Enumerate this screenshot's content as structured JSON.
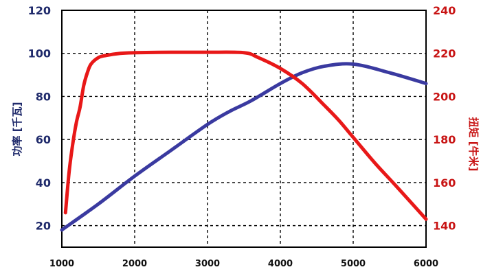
{
  "chart_data": {
    "type": "line",
    "title": "",
    "xlabel": "",
    "xlim": [
      1000,
      6000
    ],
    "x_ticks": [
      1000,
      2000,
      3000,
      4000,
      5000,
      6000
    ],
    "ylabel_left": "功率 [千瓦]",
    "ylim_left": [
      10,
      120
    ],
    "y_ticks_left": [
      20,
      40,
      60,
      80,
      100,
      120
    ],
    "ylabel_right": "扭矩 [牛米]",
    "ylim_right": [
      130,
      240
    ],
    "y_ticks_right": [
      140,
      160,
      180,
      200,
      220,
      240
    ],
    "grid": true,
    "series": [
      {
        "axis": "left",
        "color": "#3a3aa0",
        "points": [
          [
            1000,
            18
          ],
          [
            1500,
            30
          ],
          [
            2000,
            43
          ],
          [
            2500,
            55
          ],
          [
            3000,
            67
          ],
          [
            3300,
            73
          ],
          [
            3600,
            78
          ],
          [
            4000,
            86
          ],
          [
            4300,
            91
          ],
          [
            4600,
            94
          ],
          [
            5000,
            95
          ],
          [
            5500,
            91
          ],
          [
            6000,
            86
          ]
        ]
      },
      {
        "axis": "right",
        "color": "#e81818",
        "points": [
          [
            1050,
            146
          ],
          [
            1100,
            165
          ],
          [
            1150,
            178
          ],
          [
            1200,
            188
          ],
          [
            1250,
            195
          ],
          [
            1300,
            205
          ],
          [
            1350,
            211
          ],
          [
            1400,
            215
          ],
          [
            1500,
            218
          ],
          [
            1600,
            219
          ],
          [
            1800,
            220
          ],
          [
            2000,
            220.3
          ],
          [
            2500,
            220.5
          ],
          [
            3000,
            220.5
          ],
          [
            3500,
            220.3
          ],
          [
            3700,
            218
          ],
          [
            4000,
            213
          ],
          [
            4300,
            206
          ],
          [
            4600,
            196
          ],
          [
            4800,
            189
          ],
          [
            5000,
            181
          ],
          [
            5300,
            169
          ],
          [
            5600,
            158
          ],
          [
            6000,
            143
          ]
        ]
      }
    ]
  }
}
